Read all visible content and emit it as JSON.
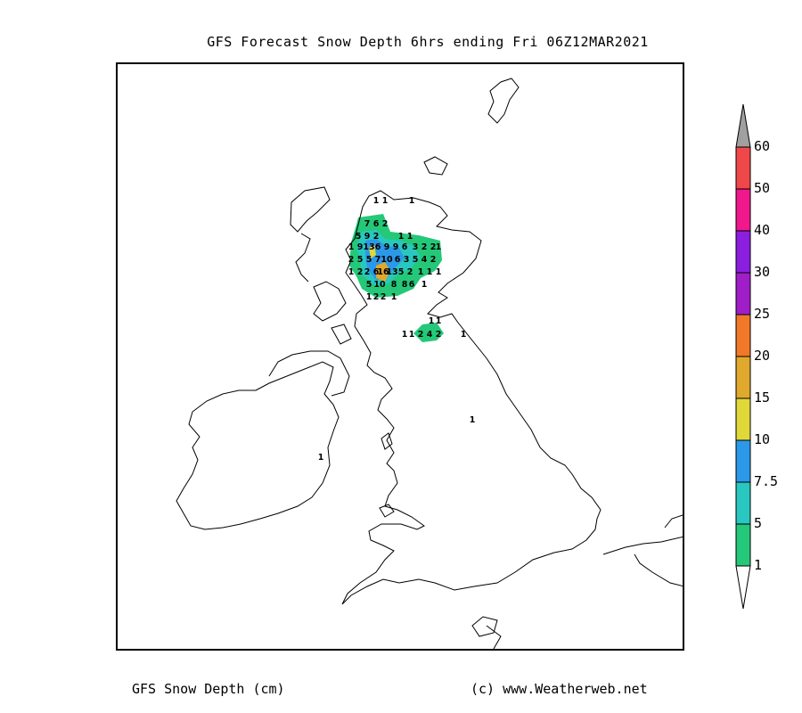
{
  "header": {
    "title": "GFS Forecast Snow Depth 6hrs ending Fri 06Z12MAR2021"
  },
  "footer": {
    "product": "GFS Snow Depth (cm)",
    "credit": "(c) www.Weatherweb.net"
  },
  "legend": {
    "levels": [
      "60",
      "50",
      "40",
      "30",
      "25",
      "20",
      "15",
      "10",
      "7.5",
      "5",
      "1"
    ],
    "colors": [
      "#f04848",
      "#f0188c",
      "#8c1ee0",
      "#a01ec8",
      "#f07828",
      "#e0a82c",
      "#e0d838",
      "#2c98e8",
      "#28c8c0",
      "#24c878"
    ],
    "over_color": "#a0a0a0",
    "under_color": "#ffffff"
  },
  "map_values": {
    "rows": [
      [
        "1",
        "1",
        "1"
      ],
      [
        "7",
        "6",
        "2"
      ],
      [
        "5",
        "9",
        "2",
        "1",
        "1"
      ],
      [
        "1",
        "9",
        "13",
        "6",
        "9",
        "9",
        "6",
        "3",
        "2",
        "2",
        "1"
      ],
      [
        "2",
        "5",
        "5",
        "7",
        "10",
        "6",
        "3",
        "5",
        "4",
        "2"
      ],
      [
        "1",
        "2",
        "2",
        "6",
        "16",
        "13",
        "5",
        "2",
        "1",
        "1",
        "1"
      ],
      [
        "5",
        "10",
        "8",
        "8",
        "6",
        "1"
      ],
      [
        "1",
        "2",
        "2",
        "1"
      ],
      [
        "1",
        "1"
      ],
      [
        "1",
        "1",
        "2",
        "4",
        "2",
        "1"
      ],
      [
        "1"
      ],
      [
        "1"
      ]
    ]
  }
}
